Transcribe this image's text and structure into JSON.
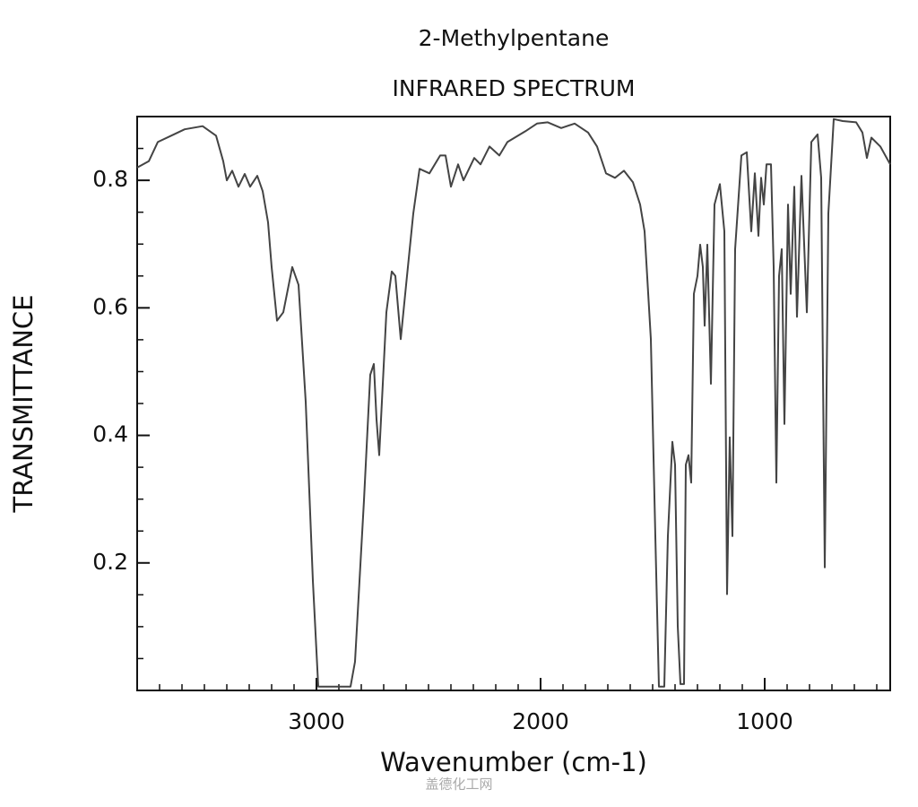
{
  "chart_data": {
    "type": "line",
    "title": "2-Methylpentane",
    "subtitle": "INFRARED SPECTRUM",
    "x_label": "Wavenumber (cm-1)",
    "y_label": "TRANSMITTANCE",
    "watermark": "盖德化工网",
    "xlim": [
      3800,
      440
    ],
    "ylim": [
      0,
      0.9
    ],
    "xticks": [
      3000,
      2000,
      1000
    ],
    "yticks": [
      0.2,
      0.4,
      0.6,
      0.8
    ],
    "xticks_minor": [
      3700,
      3600,
      3500,
      3400,
      3300,
      3200,
      3100,
      2900,
      2800,
      2700,
      2600,
      2500,
      2400,
      2300,
      2200,
      2100,
      1900,
      1800,
      1700,
      1600,
      1500,
      1400,
      1300,
      1200,
      1100,
      900,
      800,
      700,
      600,
      500
    ],
    "yticks_minor": [
      0.05,
      0.1,
      0.15,
      0.25,
      0.3,
      0.35,
      0.45,
      0.5,
      0.55,
      0.65,
      0.7,
      0.75,
      0.85
    ],
    "color": "#444444",
    "x": [
      3800,
      3748,
      3708,
      3648,
      3588,
      3508,
      3448,
      3416,
      3400,
      3376,
      3348,
      3320,
      3296,
      3264,
      3240,
      3216,
      3200,
      3176,
      3148,
      3108,
      3080,
      3048,
      3016,
      2992,
      2968,
      2848,
      2828,
      2788,
      2760,
      2744,
      2732,
      2720,
      2704,
      2688,
      2664,
      2648,
      2624,
      2600,
      2568,
      2540,
      2496,
      2448,
      2424,
      2400,
      2368,
      2344,
      2296,
      2268,
      2228,
      2184,
      2148,
      2068,
      2016,
      1968,
      1908,
      1848,
      1788,
      1748,
      1708,
      1668,
      1628,
      1588,
      1556,
      1536,
      1508,
      1488,
      1472,
      1448,
      1432,
      1412,
      1400,
      1388,
      1376,
      1360,
      1352,
      1340,
      1328,
      1316,
      1300,
      1288,
      1276,
      1268,
      1256,
      1240,
      1224,
      1200,
      1180,
      1168,
      1156,
      1144,
      1132,
      1104,
      1080,
      1060,
      1044,
      1028,
      1016,
      1004,
      992,
      972,
      960,
      948,
      936,
      924,
      912,
      896,
      884,
      868,
      856,
      836,
      812,
      792,
      764,
      748,
      732,
      716,
      692,
      652,
      592,
      564,
      544,
      524,
      484,
      440
    ],
    "values": [
      0.82,
      0.83,
      0.86,
      0.87,
      0.88,
      0.885,
      0.87,
      0.83,
      0.8,
      0.815,
      0.79,
      0.81,
      0.79,
      0.807,
      0.783,
      0.734,
      0.664,
      0.58,
      0.593,
      0.664,
      0.636,
      0.453,
      0.172,
      0.006,
      0.006,
      0.006,
      0.045,
      0.298,
      0.495,
      0.512,
      0.425,
      0.369,
      0.481,
      0.593,
      0.657,
      0.65,
      0.551,
      0.636,
      0.748,
      0.818,
      0.811,
      0.839,
      0.839,
      0.79,
      0.825,
      0.8,
      0.835,
      0.825,
      0.853,
      0.839,
      0.86,
      0.877,
      0.889,
      0.891,
      0.882,
      0.889,
      0.875,
      0.853,
      0.811,
      0.804,
      0.815,
      0.797,
      0.762,
      0.72,
      0.551,
      0.242,
      0.006,
      0.006,
      0.242,
      0.39,
      0.354,
      0.101,
      0.01,
      0.01,
      0.354,
      0.369,
      0.326,
      0.622,
      0.65,
      0.699,
      0.664,
      0.572,
      0.699,
      0.481,
      0.762,
      0.794,
      0.72,
      0.151,
      0.397,
      0.242,
      0.692,
      0.839,
      0.844,
      0.72,
      0.811,
      0.713,
      0.804,
      0.762,
      0.825,
      0.825,
      0.664,
      0.326,
      0.65,
      0.692,
      0.418,
      0.762,
      0.622,
      0.79,
      0.586,
      0.807,
      0.593,
      0.86,
      0.872,
      0.804,
      0.193,
      0.748,
      0.896,
      0.893,
      0.891,
      0.875,
      0.835,
      0.867,
      0.853,
      0.825
    ]
  }
}
